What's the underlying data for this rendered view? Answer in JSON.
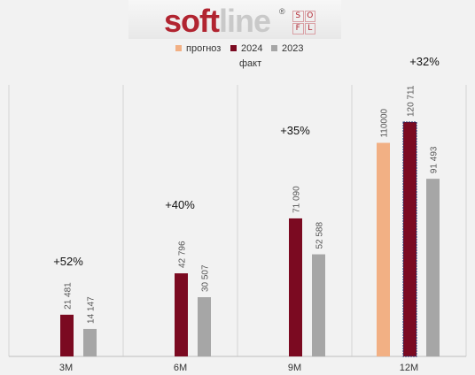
{
  "logo": {
    "soft": "soft",
    "line": "line",
    "registered": "®",
    "grid": [
      "S",
      "O",
      "F",
      "L"
    ]
  },
  "colors": {
    "forecast": "#f2b084",
    "y2024": "#7b0a21",
    "y2023": "#a6a6a6",
    "forecast_2024_outline": "#1f2d6b"
  },
  "chart_data": {
    "type": "bar",
    "categories": [
      "3M",
      "6M",
      "9M",
      "12M"
    ],
    "series": [
      {
        "name": "прогноз",
        "values": [
          null,
          null,
          null,
          110000
        ],
        "labels": [
          "",
          "",
          "",
          "110000"
        ]
      },
      {
        "name": "2024",
        "values": [
          21481,
          42796,
          71090,
          120711
        ],
        "labels": [
          "21 481",
          "42 796",
          "71 090",
          "120 711"
        ]
      },
      {
        "name": "2023",
        "values": [
          14147,
          30507,
          52588,
          91493
        ],
        "labels": [
          "14 147",
          "30 507",
          "52 588",
          "91 493"
        ]
      }
    ],
    "legend_note": "факт",
    "growth_labels": [
      "+52%",
      "+40%",
      "+35%",
      "+32%"
    ],
    "ylim": [
      0,
      140000
    ],
    "grid": false,
    "legend_position": "top"
  }
}
